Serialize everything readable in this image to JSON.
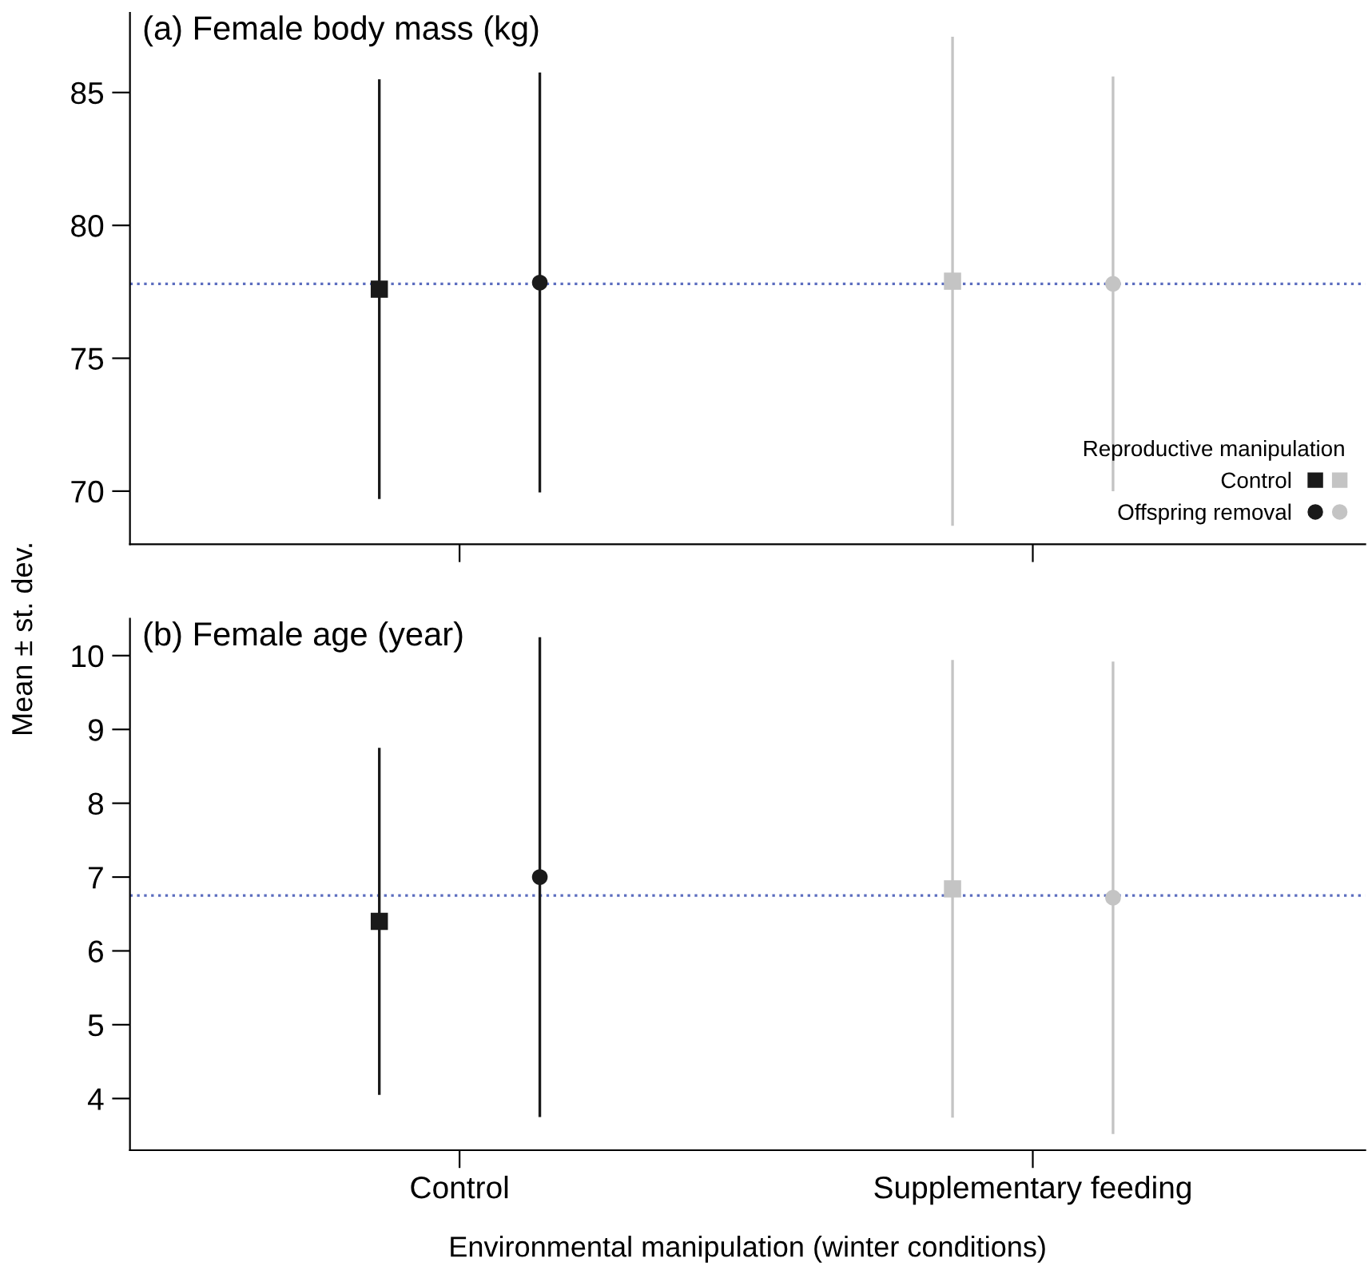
{
  "chart_data": [
    {
      "type": "scatter",
      "title": "(a) Female body mass (kg)",
      "categories": [
        null,
        null
      ],
      "series": [
        {
          "name": "Control",
          "marker": "square",
          "colors": [
            "#1a1a1a",
            "#c4c4c4"
          ],
          "values": [
            77.6,
            77.9
          ],
          "errors": [
            7.9,
            9.2
          ]
        },
        {
          "name": "Offspring removal",
          "marker": "circle",
          "colors": [
            "#1a1a1a",
            "#c4c4c4"
          ],
          "values": [
            77.85,
            77.8
          ],
          "errors": [
            7.9,
            7.8
          ]
        }
      ],
      "ylim": [
        68,
        88
      ],
      "yticks": [
        70,
        75,
        80,
        85
      ],
      "tick_labels": "y",
      "ref_lines": [
        {
          "axis": "y",
          "value": 77.8,
          "color": "#5b6dbf",
          "line_style": "dotted"
        }
      ],
      "legend": "bottom right",
      "legend_title": "Reproductive manipulation"
    },
    {
      "type": "scatter",
      "title": "(b) Female age (year)",
      "categories": [
        "Control",
        "Supplementary feeding"
      ],
      "series": [
        {
          "marker": "square",
          "colors": [
            "#1a1a1a",
            "#c4c4c4"
          ],
          "values": [
            6.4,
            6.84
          ],
          "errors": [
            2.35,
            3.1
          ]
        },
        {
          "marker": "circle",
          "colors": [
            "#1a1a1a",
            "#c4c4c4"
          ],
          "values": [
            7.0,
            6.72
          ],
          "errors": [
            3.25,
            3.2
          ]
        }
      ],
      "ylim": [
        3.3,
        10.5
      ],
      "yticks": [
        4,
        5,
        6,
        7,
        8,
        9,
        10
      ],
      "ref_lines": [
        {
          "axis": "y",
          "value": 6.75,
          "color": "#5b6dbf",
          "line_style": "dotted"
        }
      ],
      "ylabel": "Mean ± st. dev.",
      "xlabel": "Environmental manipulation (winter conditions)"
    }
  ]
}
